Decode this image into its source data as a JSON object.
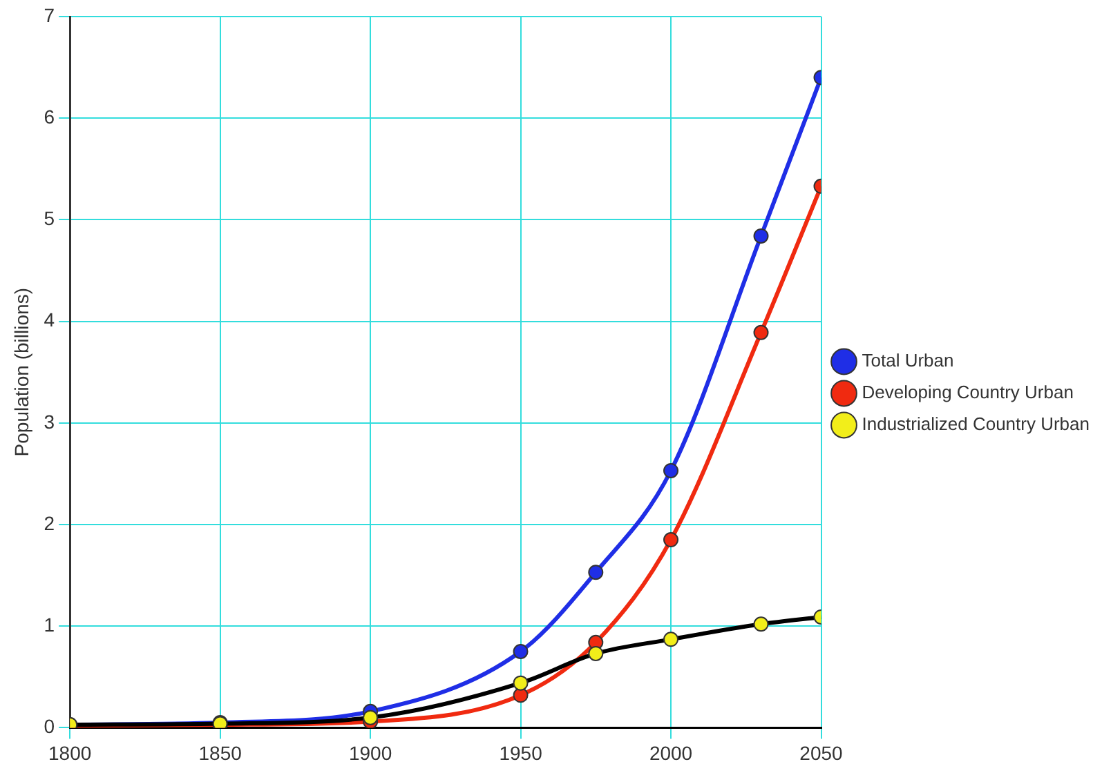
{
  "chart_data": {
    "type": "line",
    "ylabel": "Population (billions)",
    "x": [
      1800,
      1850,
      1900,
      1950,
      1975,
      2000,
      2030,
      2050
    ],
    "series": [
      {
        "name": "Total Urban",
        "color": "#1f2ee6",
        "values": [
          0.03,
          0.05,
          0.16,
          0.75,
          1.53,
          2.53,
          4.84,
          6.4
        ]
      },
      {
        "name": "Developing Country Urban",
        "color": "#f02a10",
        "values": [
          0.02,
          0.03,
          0.06,
          0.32,
          0.84,
          1.85,
          3.89,
          5.33
        ]
      },
      {
        "name": "Industrialized Country Urban",
        "color": "#000000",
        "colors": [
          "#f2ee1a",
          "#f2ee1a",
          "#f2ee1a",
          "#f2ee1a",
          "#f2ee1a",
          "#f2ee1a",
          "#f2ee1a",
          "#f2ee1a"
        ],
        "values": [
          0.03,
          0.04,
          0.1,
          0.44,
          0.73,
          0.87,
          1.02,
          1.09
        ]
      }
    ],
    "xlim": [
      1800,
      2050
    ],
    "xticks": [
      1800,
      1850,
      1900,
      1950,
      2000,
      2050
    ],
    "ylim": [
      0,
      7
    ],
    "yticks": [
      0,
      1,
      2,
      3,
      4,
      5,
      6,
      7
    ],
    "grid": true,
    "legend": "right",
    "marker": "circle",
    "line_style": "solid"
  }
}
